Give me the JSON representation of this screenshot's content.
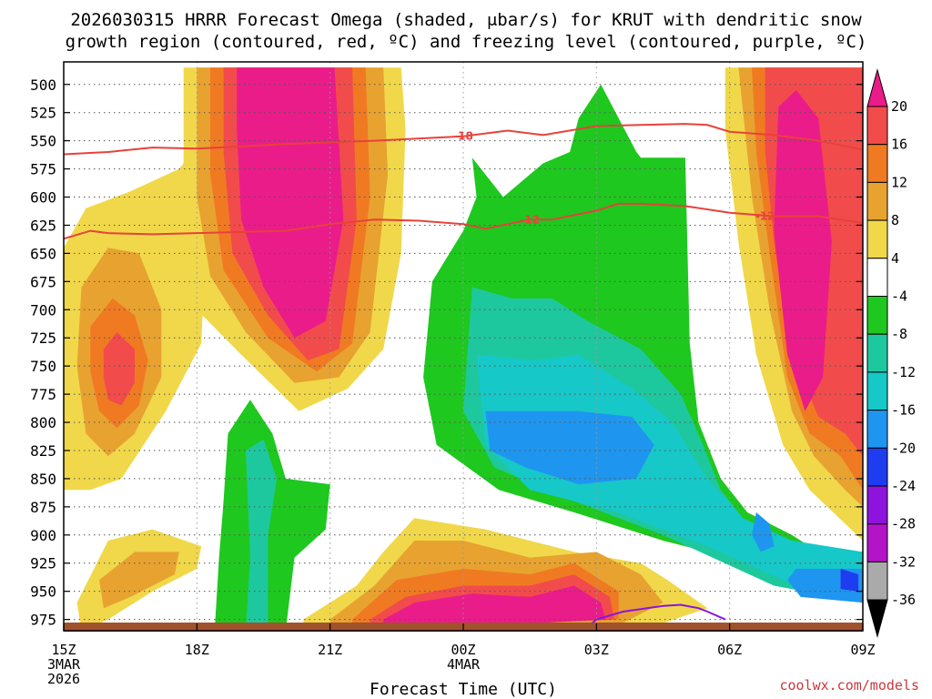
{
  "chart_data": {
    "type": "heatmap",
    "title_line1": "2026030315 HRRR Forecast Omega (shaded, μbar/s) for KRUT with dendritic snow",
    "title_line2": "growth region (contoured, red, ºC) and freezing level (contoured, purple, ºC)",
    "xlabel": "Forecast Time (UTC)",
    "credit": "coolwx.com/models",
    "y_axis": {
      "units": "hPa",
      "ylim": [
        985,
        480
      ],
      "ticks": [
        500,
        525,
        550,
        575,
        600,
        625,
        650,
        675,
        700,
        725,
        750,
        775,
        800,
        825,
        850,
        875,
        900,
        925,
        950,
        975
      ]
    },
    "x_axis": {
      "units": "hours after 15Z 3 Mar 2026",
      "xlim": [
        0,
        18
      ],
      "ticks": [
        {
          "hour": 0,
          "label": "15Z",
          "sub1": "3MAR",
          "sub2": "2026"
        },
        {
          "hour": 3,
          "label": "18Z",
          "sub1": "",
          "sub2": ""
        },
        {
          "hour": 6,
          "label": "21Z",
          "sub1": "",
          "sub2": ""
        },
        {
          "hour": 9,
          "label": "00Z",
          "sub1": "4MAR",
          "sub2": ""
        },
        {
          "hour": 12,
          "label": "03Z",
          "sub1": "",
          "sub2": ""
        },
        {
          "hour": 15,
          "label": "06Z",
          "sub1": "",
          "sub2": ""
        },
        {
          "hour": 18,
          "label": "09Z",
          "sub1": "",
          "sub2": ""
        }
      ]
    },
    "colorbar": {
      "levels": [
        20,
        16,
        12,
        8,
        4,
        -4,
        -8,
        -12,
        -16,
        -20,
        -24,
        -28,
        -32,
        -36
      ],
      "colors": [
        "#ea1c8a",
        "#f24b4b",
        "#f07a22",
        "#e8a230",
        "#f0d84a",
        "#ffffff",
        "#1ec81e",
        "#1ec89e",
        "#16c8c8",
        "#1e96f0",
        "#1e3cf0",
        "#8c14dc",
        "#b414c8",
        "#aaaaaa",
        "#000000"
      ]
    },
    "shaded_regions": [
      {
        "name": "upward-motion-core-19z-21z",
        "omega_min": 20,
        "hours": [
          3.5,
          6.3
        ],
        "pressure_hpa": [
          485,
          730
        ],
        "color": "#ea1c8a"
      },
      {
        "name": "upward-motion-core-07z-08z",
        "omega_min": 20,
        "hours": [
          15.6,
          16.8
        ],
        "pressure_hpa": [
          505,
          795
        ],
        "color": "#ea1c8a"
      },
      {
        "name": "upward-motion-1530z-1730z",
        "omega_max": 16,
        "hours": [
          0.9,
          2.2
        ],
        "pressure_hpa": [
          660,
          800
        ],
        "color": "#f07a22"
      },
      {
        "name": "downward-motion-02z",
        "omega_min": -8,
        "hours": [
          8.3,
          13.6
        ],
        "pressure_hpa": [
          520,
          940
        ],
        "color": "#1ec81e"
      },
      {
        "name": "downward-motion-0130z-06z",
        "omega_min": -20,
        "hours": [
          9.4,
          13.2
        ],
        "pressure_hpa": [
          775,
          840
        ],
        "color": "#1e96f0"
      },
      {
        "name": "downward-motion-08z-950",
        "omega_min": -24,
        "hours": [
          17.6,
          17.9
        ],
        "pressure_hpa": [
          925,
          950
        ],
        "color": "#1e3cf0"
      },
      {
        "name": "low-level-upward-0130z",
        "omega_min": 20,
        "hours": [
          6.9,
          12.4
        ],
        "pressure_hpa": [
          930,
          985
        ],
        "color": "#ea1c8a"
      }
    ],
    "contours_dgz": [
      {
        "label": "-18",
        "units": "ºC",
        "hours": [
          0,
          1,
          2,
          3,
          3.5,
          5,
          7,
          9,
          10,
          10.8,
          12,
          13,
          14,
          14.5,
          15,
          16,
          17,
          18
        ],
        "pressure": [
          562,
          560,
          556,
          557,
          556,
          553,
          550,
          546,
          541,
          545,
          537,
          536,
          535,
          536,
          542,
          545,
          550,
          558
        ]
      },
      {
        "label": "-12",
        "units": "ºC",
        "hours": [
          0,
          0.6,
          1,
          2,
          3,
          4,
          5,
          6,
          7,
          8,
          9,
          9.5,
          10,
          10.5,
          11,
          12,
          12.5,
          13,
          14,
          15,
          16,
          17,
          18
        ],
        "pressure": [
          637,
          630,
          632,
          633,
          632,
          631,
          630,
          624,
          620,
          621,
          624,
          628,
          624,
          620,
          620,
          612,
          606,
          606,
          608,
          614,
          617,
          617,
          623
        ]
      }
    ],
    "contours_freezing_level": [
      {
        "units": "ºC",
        "hours": [
          11.7,
          12,
          12.6,
          13.5,
          13.9,
          14.3,
          14.5,
          14.9
        ],
        "pressure": [
          985,
          975,
          968,
          963,
          962,
          965,
          968,
          975
        ]
      }
    ],
    "terrain_color": "#a0522d"
  }
}
